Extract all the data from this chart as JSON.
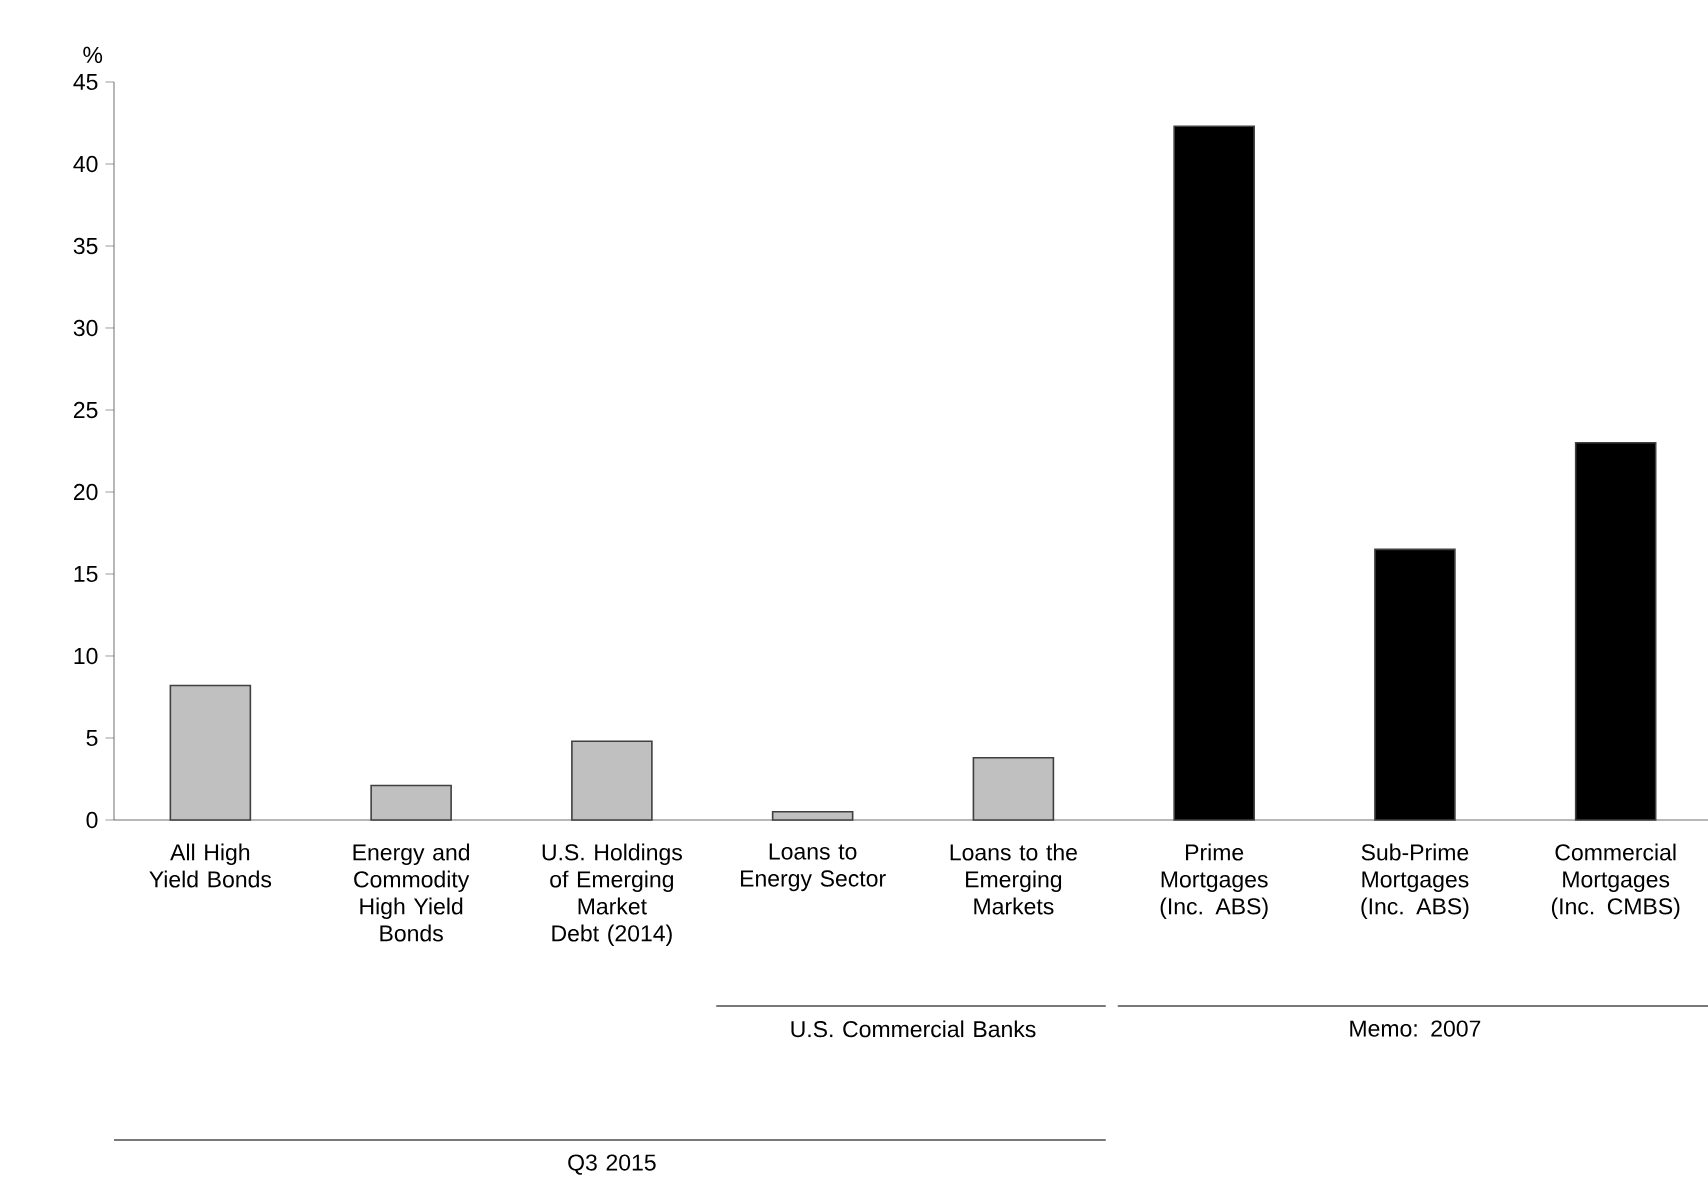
{
  "chart_data": {
    "type": "bar",
    "ylabel": "%",
    "categories": [
      "All High Yield Bonds",
      "Energy and Commodity High Yield Bonds",
      "U.S. Holdings of Emerging Market Debt (2014)",
      "Loans to Energy Sector",
      "Loans to the Emerging Markets",
      "Prime Mortgages (Inc. ABS)",
      "Sub-Prime Mortgages (Inc. ABS)",
      "Commercial Mortgages (Inc. CMBS)"
    ],
    "values": [
      8.2,
      2.1,
      4.8,
      0.5,
      3.8,
      42.3,
      16.5,
      23.0
    ],
    "colors": [
      "#c0c0c0",
      "#c0c0c0",
      "#c0c0c0",
      "#c0c0c0",
      "#c0c0c0",
      "#000000",
      "#000000",
      "#000000"
    ],
    "ylim": [
      0,
      45
    ],
    "yticks": [
      0,
      5,
      10,
      15,
      20,
      25,
      30,
      35,
      40,
      45
    ],
    "annotations": [
      "Q3 2015",
      "U.S. Commercial Banks",
      "Memo: 2007"
    ]
  }
}
